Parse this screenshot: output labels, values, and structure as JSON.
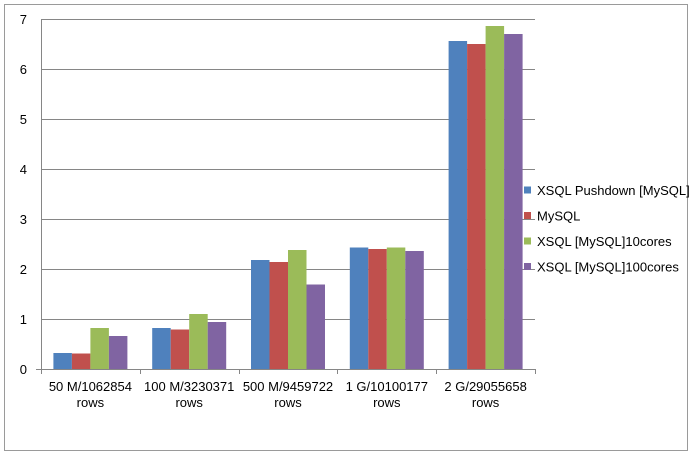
{
  "chart_data": {
    "type": "bar",
    "title": "",
    "xlabel": "",
    "ylabel": "",
    "ylim": [
      0,
      7
    ],
    "yticks": [
      0,
      1,
      2,
      3,
      4,
      5,
      6,
      7
    ],
    "grid": true,
    "legend_position": "right",
    "categories": [
      [
        "50 M/1062854",
        "rows"
      ],
      [
        "100 M/3230371",
        "rows"
      ],
      [
        "500 M/9459722",
        "rows"
      ],
      [
        "1 G/10100177",
        "rows"
      ],
      [
        "2 G/29055658",
        "rows"
      ]
    ],
    "series": [
      {
        "name": "XSQL Pushdown [MySQL]",
        "color": "#4f81bd",
        "values": [
          0.32,
          0.82,
          2.18,
          2.43,
          6.56
        ]
      },
      {
        "name": "MySQL",
        "color": "#c0504d",
        "values": [
          0.31,
          0.79,
          2.14,
          2.4,
          6.5
        ]
      },
      {
        "name": "XSQL [MySQL]10cores",
        "color": "#9bbb59",
        "values": [
          0.82,
          1.1,
          2.38,
          2.43,
          6.86
        ]
      },
      {
        "name": "XSQL [MySQL]100cores",
        "color": "#8064a2",
        "values": [
          0.66,
          0.94,
          1.69,
          2.36,
          6.7
        ]
      }
    ]
  }
}
